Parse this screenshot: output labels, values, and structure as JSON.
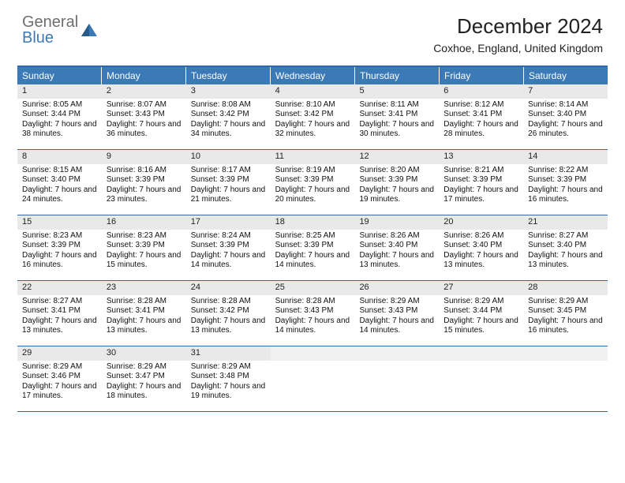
{
  "brand": {
    "name_gray": "General",
    "name_blue": "Blue"
  },
  "title": "December 2024",
  "location": "Coxhoe, England, United Kingdom",
  "colors": {
    "header_bg": "#3b79b7",
    "header_text": "#ffffff",
    "daynum_bg": "#e9e9e9",
    "rule": "#2f6aa8",
    "body_text": "#111111"
  },
  "day_names": [
    "Sunday",
    "Monday",
    "Tuesday",
    "Wednesday",
    "Thursday",
    "Friday",
    "Saturday"
  ],
  "weeks": [
    [
      {
        "n": "1",
        "sr": "Sunrise: 8:05 AM",
        "ss": "Sunset: 3:44 PM",
        "dl": "Daylight: 7 hours and 38 minutes."
      },
      {
        "n": "2",
        "sr": "Sunrise: 8:07 AM",
        "ss": "Sunset: 3:43 PM",
        "dl": "Daylight: 7 hours and 36 minutes."
      },
      {
        "n": "3",
        "sr": "Sunrise: 8:08 AM",
        "ss": "Sunset: 3:42 PM",
        "dl": "Daylight: 7 hours and 34 minutes."
      },
      {
        "n": "4",
        "sr": "Sunrise: 8:10 AM",
        "ss": "Sunset: 3:42 PM",
        "dl": "Daylight: 7 hours and 32 minutes."
      },
      {
        "n": "5",
        "sr": "Sunrise: 8:11 AM",
        "ss": "Sunset: 3:41 PM",
        "dl": "Daylight: 7 hours and 30 minutes."
      },
      {
        "n": "6",
        "sr": "Sunrise: 8:12 AM",
        "ss": "Sunset: 3:41 PM",
        "dl": "Daylight: 7 hours and 28 minutes."
      },
      {
        "n": "7",
        "sr": "Sunrise: 8:14 AM",
        "ss": "Sunset: 3:40 PM",
        "dl": "Daylight: 7 hours and 26 minutes."
      }
    ],
    [
      {
        "n": "8",
        "sr": "Sunrise: 8:15 AM",
        "ss": "Sunset: 3:40 PM",
        "dl": "Daylight: 7 hours and 24 minutes."
      },
      {
        "n": "9",
        "sr": "Sunrise: 8:16 AM",
        "ss": "Sunset: 3:39 PM",
        "dl": "Daylight: 7 hours and 23 minutes."
      },
      {
        "n": "10",
        "sr": "Sunrise: 8:17 AM",
        "ss": "Sunset: 3:39 PM",
        "dl": "Daylight: 7 hours and 21 minutes."
      },
      {
        "n": "11",
        "sr": "Sunrise: 8:19 AM",
        "ss": "Sunset: 3:39 PM",
        "dl": "Daylight: 7 hours and 20 minutes."
      },
      {
        "n": "12",
        "sr": "Sunrise: 8:20 AM",
        "ss": "Sunset: 3:39 PM",
        "dl": "Daylight: 7 hours and 19 minutes."
      },
      {
        "n": "13",
        "sr": "Sunrise: 8:21 AM",
        "ss": "Sunset: 3:39 PM",
        "dl": "Daylight: 7 hours and 17 minutes."
      },
      {
        "n": "14",
        "sr": "Sunrise: 8:22 AM",
        "ss": "Sunset: 3:39 PM",
        "dl": "Daylight: 7 hours and 16 minutes."
      }
    ],
    [
      {
        "n": "15",
        "sr": "Sunrise: 8:23 AM",
        "ss": "Sunset: 3:39 PM",
        "dl": "Daylight: 7 hours and 16 minutes."
      },
      {
        "n": "16",
        "sr": "Sunrise: 8:23 AM",
        "ss": "Sunset: 3:39 PM",
        "dl": "Daylight: 7 hours and 15 minutes."
      },
      {
        "n": "17",
        "sr": "Sunrise: 8:24 AM",
        "ss": "Sunset: 3:39 PM",
        "dl": "Daylight: 7 hours and 14 minutes."
      },
      {
        "n": "18",
        "sr": "Sunrise: 8:25 AM",
        "ss": "Sunset: 3:39 PM",
        "dl": "Daylight: 7 hours and 14 minutes."
      },
      {
        "n": "19",
        "sr": "Sunrise: 8:26 AM",
        "ss": "Sunset: 3:40 PM",
        "dl": "Daylight: 7 hours and 13 minutes."
      },
      {
        "n": "20",
        "sr": "Sunrise: 8:26 AM",
        "ss": "Sunset: 3:40 PM",
        "dl": "Daylight: 7 hours and 13 minutes."
      },
      {
        "n": "21",
        "sr": "Sunrise: 8:27 AM",
        "ss": "Sunset: 3:40 PM",
        "dl": "Daylight: 7 hours and 13 minutes."
      }
    ],
    [
      {
        "n": "22",
        "sr": "Sunrise: 8:27 AM",
        "ss": "Sunset: 3:41 PM",
        "dl": "Daylight: 7 hours and 13 minutes."
      },
      {
        "n": "23",
        "sr": "Sunrise: 8:28 AM",
        "ss": "Sunset: 3:41 PM",
        "dl": "Daylight: 7 hours and 13 minutes."
      },
      {
        "n": "24",
        "sr": "Sunrise: 8:28 AM",
        "ss": "Sunset: 3:42 PM",
        "dl": "Daylight: 7 hours and 13 minutes."
      },
      {
        "n": "25",
        "sr": "Sunrise: 8:28 AM",
        "ss": "Sunset: 3:43 PM",
        "dl": "Daylight: 7 hours and 14 minutes."
      },
      {
        "n": "26",
        "sr": "Sunrise: 8:29 AM",
        "ss": "Sunset: 3:43 PM",
        "dl": "Daylight: 7 hours and 14 minutes."
      },
      {
        "n": "27",
        "sr": "Sunrise: 8:29 AM",
        "ss": "Sunset: 3:44 PM",
        "dl": "Daylight: 7 hours and 15 minutes."
      },
      {
        "n": "28",
        "sr": "Sunrise: 8:29 AM",
        "ss": "Sunset: 3:45 PM",
        "dl": "Daylight: 7 hours and 16 minutes."
      }
    ],
    [
      {
        "n": "29",
        "sr": "Sunrise: 8:29 AM",
        "ss": "Sunset: 3:46 PM",
        "dl": "Daylight: 7 hours and 17 minutes."
      },
      {
        "n": "30",
        "sr": "Sunrise: 8:29 AM",
        "ss": "Sunset: 3:47 PM",
        "dl": "Daylight: 7 hours and 18 minutes."
      },
      {
        "n": "31",
        "sr": "Sunrise: 8:29 AM",
        "ss": "Sunset: 3:48 PM",
        "dl": "Daylight: 7 hours and 19 minutes."
      },
      {
        "n": "",
        "sr": "",
        "ss": "",
        "dl": ""
      },
      {
        "n": "",
        "sr": "",
        "ss": "",
        "dl": ""
      },
      {
        "n": "",
        "sr": "",
        "ss": "",
        "dl": ""
      },
      {
        "n": "",
        "sr": "",
        "ss": "",
        "dl": ""
      }
    ]
  ]
}
